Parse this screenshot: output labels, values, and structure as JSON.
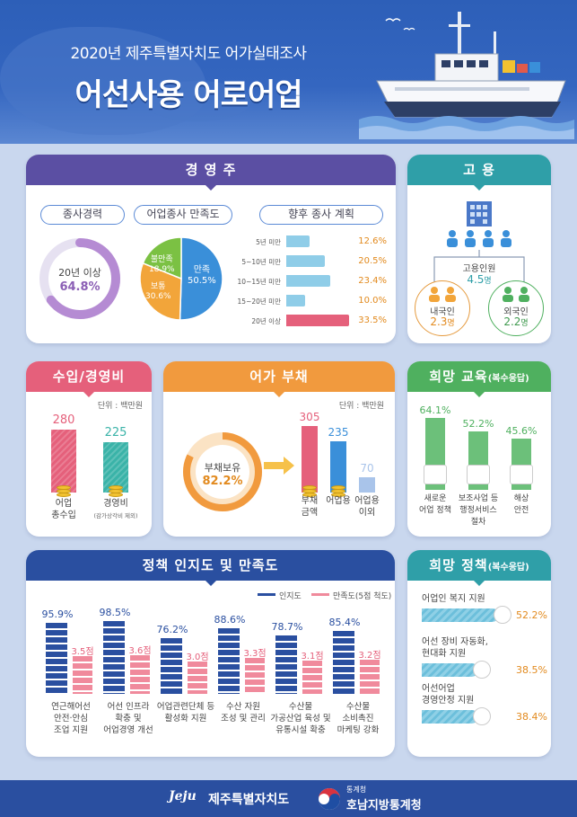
{
  "header": {
    "subtitle": "2020년 제주특별자치도 어가실태조사",
    "title": "어선사용 어로어업"
  },
  "management": {
    "title": "경 영 주",
    "experience": {
      "label": "종사경력",
      "value_label": "20년 이상",
      "percent": "64.8%",
      "fraction": 0.648
    },
    "satisfaction": {
      "label": "어업종사 만족도",
      "slices": [
        {
          "name": "만족",
          "value": 50.5,
          "display": "50.5%",
          "color": "#3a8fd9"
        },
        {
          "name": "보통",
          "value": 30.6,
          "display": "30.6%",
          "color": "#f2a53a"
        },
        {
          "name": "불만족",
          "value": 18.9,
          "display": "18.9%",
          "color": "#7bc143"
        }
      ]
    },
    "plan": {
      "label": "향후 종사 계획",
      "rows": [
        {
          "label": "5년 미만",
          "value": 12.6,
          "display": "12.6%"
        },
        {
          "label": "5~10년 미만",
          "value": 20.5,
          "display": "20.5%"
        },
        {
          "label": "10~15년 미만",
          "value": 23.4,
          "display": "23.4%"
        },
        {
          "label": "15~20년 미만",
          "value": 10.0,
          "display": "10.0%"
        },
        {
          "label": "20년 이상",
          "value": 33.5,
          "display": "33.5%"
        }
      ]
    }
  },
  "employment": {
    "title": "고 용",
    "total_label": "고용인원",
    "total_value": "4.5",
    "total_unit": "명",
    "domestic_label": "내국인",
    "domestic_value": "2.3",
    "domestic_unit": "명",
    "foreign_label": "외국인",
    "foreign_value": "2.2",
    "foreign_unit": "명"
  },
  "income": {
    "title": "수입/경영비",
    "unit": "단위 : 백만원",
    "bars": [
      {
        "value": 280,
        "display": "280",
        "label": "어업\n총수입",
        "note": ""
      },
      {
        "value": 225,
        "display": "225",
        "label": "경영비",
        "note": "(감가상각비 제외)"
      }
    ]
  },
  "debt": {
    "title": "어가 부채",
    "unit": "단위 : 백만원",
    "holding_label": "부채보유",
    "holding_percent": "82.2%",
    "holding_fraction": 0.822,
    "bars": [
      {
        "value": 305,
        "display": "305",
        "label": "부채\n금액",
        "color": "#e5607b"
      },
      {
        "value": 235,
        "display": "235",
        "label": "어업용",
        "color": "#3a8fd9"
      },
      {
        "value": 70,
        "display": "70",
        "label": "어업용\n이외",
        "color": "#a9c4ea"
      }
    ]
  },
  "education": {
    "title": "희망 교육",
    "title_note": "(복수응답)",
    "bars": [
      {
        "value": 64.1,
        "display": "64.1%",
        "label": "새로운\n어업 정책"
      },
      {
        "value": 52.2,
        "display": "52.2%",
        "label": "보조사업 등\n행정서비스\n절차"
      },
      {
        "value": 45.6,
        "display": "45.6%",
        "label": "해상\n안전"
      }
    ]
  },
  "policy": {
    "title": "정책 인지도 및 만족도",
    "legend_awareness": "인지도",
    "legend_satisfaction": "만족도(5점 척도)",
    "color_awareness": "#2a4fa0",
    "color_satisfaction": "#f08a9c",
    "items": [
      {
        "awareness": 95.9,
        "awareness_display": "95.9%",
        "satisfaction": 3.5,
        "satisfaction_display": "3.5점",
        "label": "연근해어선\n안전·안심\n조업 지원"
      },
      {
        "awareness": 98.5,
        "awareness_display": "98.5%",
        "satisfaction": 3.6,
        "satisfaction_display": "3.6점",
        "label": "어선 인프라\n확충 및\n어업경영 개선"
      },
      {
        "awareness": 76.2,
        "awareness_display": "76.2%",
        "satisfaction": 3.0,
        "satisfaction_display": "3.0점",
        "label": "어업관련단체 등\n활성화 지원"
      },
      {
        "awareness": 88.6,
        "awareness_display": "88.6%",
        "satisfaction": 3.3,
        "satisfaction_display": "3.3점",
        "label": "수산 자원\n조성 및 관리"
      },
      {
        "awareness": 78.7,
        "awareness_display": "78.7%",
        "satisfaction": 3.1,
        "satisfaction_display": "3.1점",
        "label": "수산물\n가공산업 육성 및\n유통시설 확충"
      },
      {
        "awareness": 85.4,
        "awareness_display": "85.4%",
        "satisfaction": 3.2,
        "satisfaction_display": "3.2점",
        "label": "수산물\n소비촉진\n마케팅 강화"
      }
    ]
  },
  "hope_policy": {
    "title": "희망 정책",
    "title_note": "(복수응답)",
    "items": [
      {
        "label": "어업인 복지 지원",
        "value": 52.2,
        "display": "52.2%"
      },
      {
        "label": "어선 장비 자동화,\n현대화 지원",
        "value": 38.5,
        "display": "38.5%"
      },
      {
        "label": "어선어업\n경영안정 지원",
        "value": 38.4,
        "display": "38.4%"
      }
    ]
  },
  "footer": {
    "jeju_logo": "Jeju",
    "jeju_name": "제주특별자치도",
    "stat_small": "통계청",
    "stat_name": "호남지방통계청"
  }
}
